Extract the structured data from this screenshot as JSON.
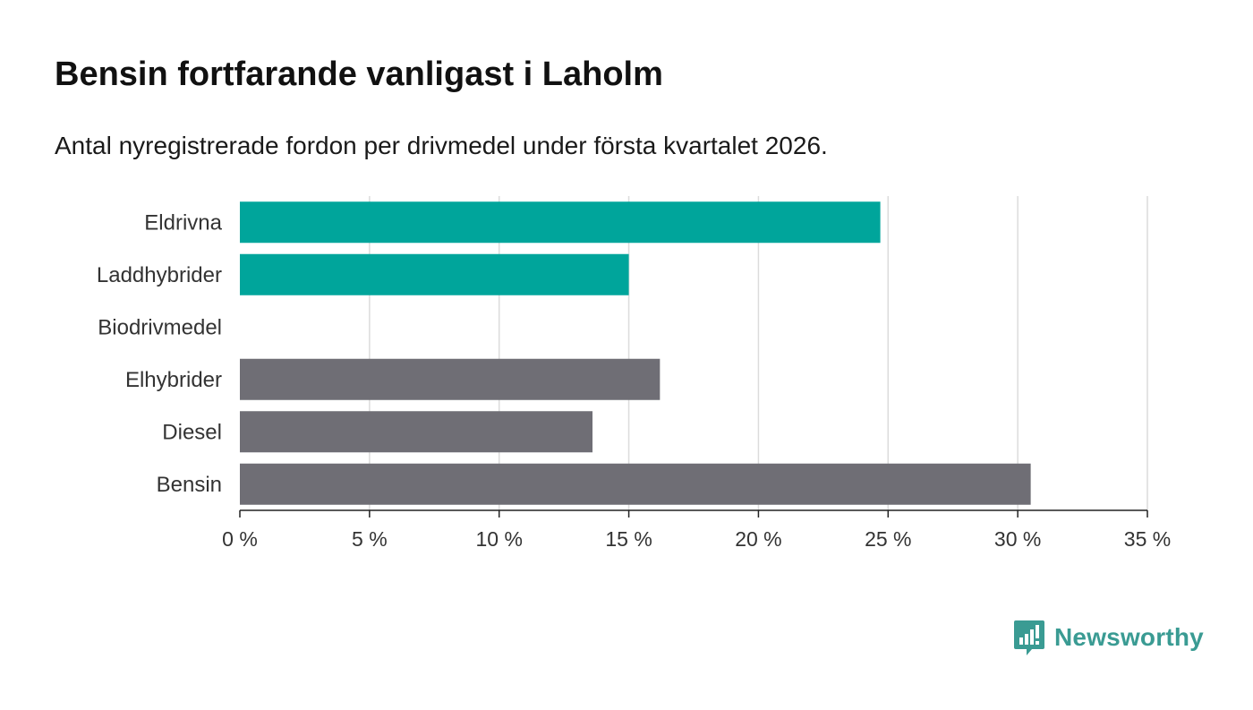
{
  "title": "Bensin fortfarande vanligast i Laholm",
  "subtitle": "Antal nyregistrerade fordon per drivmedel under första kvartalet 2026.",
  "brand": {
    "name": "Newsworthy",
    "logo_icon": "bar-chart-speech-bubble-icon",
    "color": "#3a9b93"
  },
  "colors": {
    "highlight": "#00a59b",
    "neutral": "#6f6e75",
    "grid": "#dcdcdc",
    "axis": "#222222",
    "label": "#333333"
  },
  "chart_data": {
    "type": "bar",
    "orientation": "horizontal",
    "categories": [
      "Eldrivna",
      "Laddhybrider",
      "Biodrivmedel",
      "Elhybrider",
      "Diesel",
      "Bensin"
    ],
    "values": [
      24.7,
      15.0,
      0,
      16.2,
      13.6,
      30.5
    ],
    "highlighted": [
      true,
      true,
      true,
      false,
      false,
      false
    ],
    "unit": "%",
    "xlim": [
      0,
      35
    ],
    "xticks": [
      0,
      5,
      10,
      15,
      20,
      25,
      30,
      35
    ],
    "xtick_labels": [
      "0 %",
      "5 %",
      "10 %",
      "15 %",
      "20 %",
      "25 %",
      "30 %",
      "35 %"
    ],
    "xlabel": "",
    "ylabel": "",
    "grid": "vertical"
  }
}
